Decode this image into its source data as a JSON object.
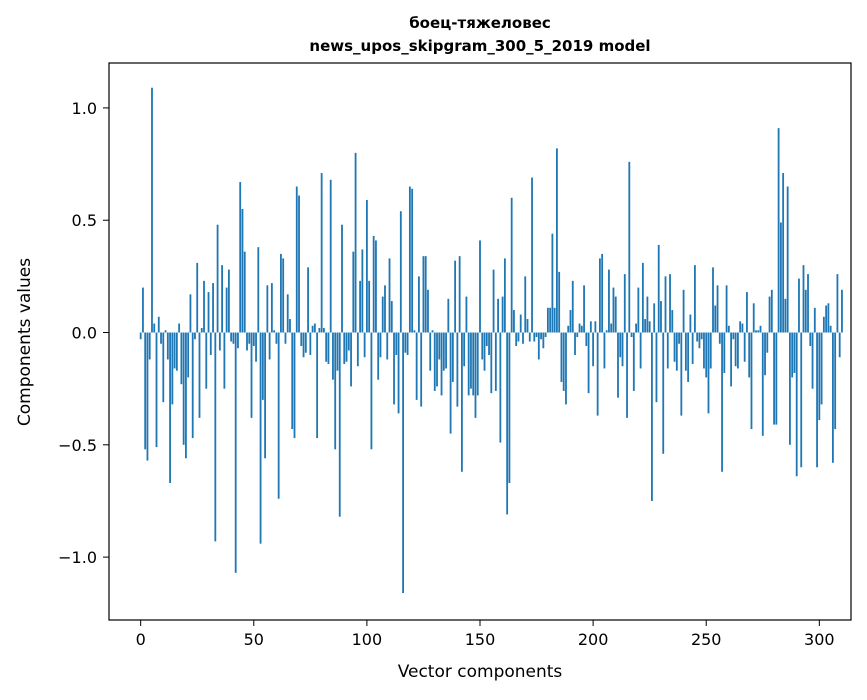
{
  "chart_data": {
    "type": "bar",
    "title": "боец-тяжеловес",
    "subtitle": "news_upos_skipgram_300_5_2019 model",
    "xlabel": "Vector components",
    "ylabel": "Components values",
    "xlim": [
      -14,
      314
    ],
    "ylim": [
      -1.28,
      1.2
    ],
    "grid": false,
    "bar_color": "#1f77b4",
    "x_ticks": [
      {
        "value": 0,
        "label": "0"
      },
      {
        "value": 50,
        "label": "50"
      },
      {
        "value": 100,
        "label": "100"
      },
      {
        "value": 150,
        "label": "150"
      },
      {
        "value": 200,
        "label": "200"
      },
      {
        "value": 250,
        "label": "250"
      },
      {
        "value": 300,
        "label": "300"
      }
    ],
    "y_ticks": [
      {
        "value": -1.0,
        "label": "−1.0"
      },
      {
        "value": -0.5,
        "label": "−0.5"
      },
      {
        "value": 0.0,
        "label": "0.0"
      },
      {
        "value": 0.5,
        "label": "0.5"
      },
      {
        "value": 1.0,
        "label": "1.0"
      }
    ],
    "values": [
      -0.03,
      0.2,
      -0.52,
      -0.57,
      -0.12,
      1.09,
      0.04,
      -0.51,
      0.07,
      -0.05,
      -0.31,
      0.01,
      -0.12,
      -0.67,
      -0.32,
      -0.16,
      -0.17,
      0.04,
      -0.23,
      -0.5,
      -0.56,
      -0.2,
      0.17,
      -0.47,
      -0.03,
      0.31,
      -0.38,
      0.02,
      0.23,
      -0.25,
      0.18,
      -0.1,
      0.22,
      -0.93,
      0.48,
      -0.08,
      0.3,
      -0.25,
      0.2,
      0.28,
      -0.04,
      -0.05,
      -1.07,
      -0.07,
      0.67,
      0.55,
      0.36,
      -0.08,
      -0.05,
      -0.38,
      -0.06,
      -0.13,
      0.38,
      -0.94,
      -0.3,
      -0.56,
      0.21,
      -0.12,
      0.22,
      0.01,
      -0.05,
      -0.74,
      0.35,
      0.33,
      -0.05,
      0.17,
      0.06,
      -0.43,
      -0.47,
      0.65,
      0.61,
      -0.06,
      -0.11,
      -0.09,
      0.29,
      -0.1,
      0.03,
      0.04,
      -0.47,
      0.02,
      0.71,
      0.02,
      -0.13,
      -0.14,
      0.68,
      -0.21,
      -0.52,
      -0.17,
      -0.82,
      0.48,
      -0.14,
      -0.13,
      -0.08,
      -0.24,
      0.36,
      0.8,
      -0.15,
      0.23,
      0.37,
      -0.11,
      0.59,
      0.23,
      -0.52,
      0.43,
      0.41,
      -0.21,
      -0.11,
      0.16,
      0.21,
      -0.12,
      0.33,
      0.14,
      -0.32,
      -0.1,
      -0.36,
      0.54,
      -1.16,
      -0.09,
      -0.1,
      0.65,
      0.64,
      0.01,
      -0.3,
      0.25,
      -0.33,
      0.34,
      0.34,
      0.19,
      -0.17,
      0.01,
      -0.26,
      -0.24,
      -0.12,
      -0.28,
      -0.17,
      -0.16,
      0.15,
      -0.45,
      -0.22,
      0.32,
      -0.33,
      0.34,
      -0.62,
      -0.15,
      0.16,
      -0.28,
      -0.25,
      -0.28,
      -0.38,
      -0.28,
      0.41,
      -0.12,
      -0.17,
      -0.06,
      -0.1,
      -0.27,
      0.28,
      -0.26,
      0.15,
      -0.49,
      0.16,
      0.33,
      -0.81,
      -0.67,
      0.6,
      0.1,
      -0.06,
      -0.04,
      0.08,
      -0.05,
      0.25,
      0.06,
      -0.04,
      0.69,
      -0.04,
      -0.02,
      -0.12,
      -0.03,
      -0.07,
      -0.02,
      0.11,
      0.11,
      0.44,
      0.11,
      0.82,
      0.27,
      -0.22,
      -0.26,
      -0.32,
      0.03,
      0.1,
      0.23,
      -0.1,
      -0.02,
      0.04,
      0.03,
      0.21,
      -0.06,
      -0.27,
      0.05,
      -0.15,
      0.05,
      -0.37,
      0.33,
      0.35,
      -0.16,
      0.01,
      0.28,
      0.04,
      0.2,
      0.16,
      -0.29,
      -0.11,
      -0.15,
      0.26,
      -0.38,
      0.76,
      -0.02,
      -0.26,
      0.04,
      0.2,
      -0.16,
      0.31,
      0.06,
      0.16,
      0.05,
      -0.75,
      0.13,
      -0.31,
      0.39,
      0.14,
      -0.54,
      0.25,
      -0.16,
      0.26,
      0.1,
      -0.13,
      -0.17,
      -0.05,
      -0.37,
      0.19,
      -0.17,
      -0.22,
      0.08,
      -0.14,
      0.3,
      -0.04,
      -0.07,
      -0.03,
      -0.16,
      -0.2,
      -0.36,
      -0.16,
      0.29,
      0.12,
      0.21,
      -0.05,
      -0.62,
      -0.18,
      0.21,
      0.03,
      -0.24,
      -0.03,
      -0.15,
      -0.16,
      0.05,
      0.04,
      -0.13,
      0.18,
      -0.2,
      -0.43,
      0.13,
      0.01,
      0.01,
      0.03,
      -0.46,
      -0.19,
      -0.09,
      0.16,
      0.19,
      -0.41,
      -0.41,
      0.91,
      0.49,
      0.71,
      0.15,
      0.65,
      -0.5,
      -0.2,
      -0.18,
      -0.64,
      0.24,
      -0.6,
      0.3,
      0.19,
      0.26,
      -0.06,
      -0.25,
      0.11,
      -0.6,
      -0.39,
      -0.32,
      0.07,
      0.12,
      0.13,
      0.03,
      -0.58,
      -0.43,
      0.26,
      -0.11,
      0.19
    ]
  }
}
